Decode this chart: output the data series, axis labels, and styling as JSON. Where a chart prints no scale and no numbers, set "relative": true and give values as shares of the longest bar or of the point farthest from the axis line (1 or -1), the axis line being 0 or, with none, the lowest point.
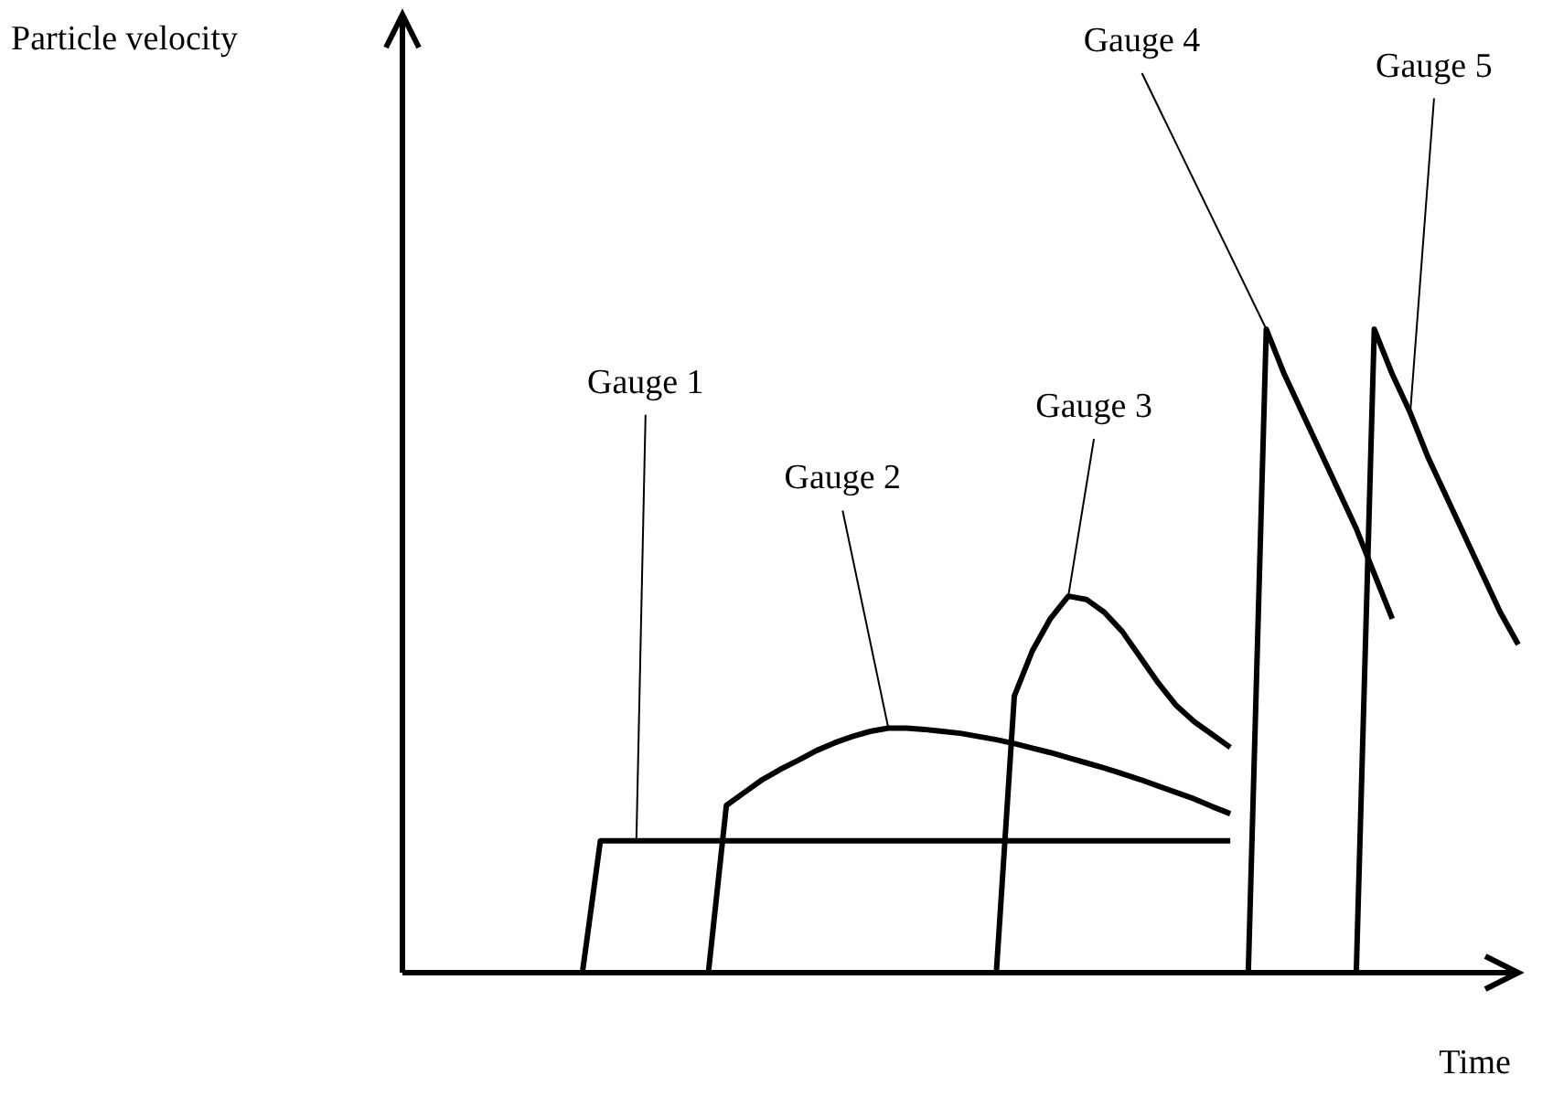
{
  "chart_data": {
    "type": "line",
    "relative": true,
    "xlabel": "Time",
    "categories": [
      null,
      null,
      null,
      null,
      null,
      null,
      null,
      null,
      null,
      null,
      null,
      null,
      null,
      null,
      null,
      null,
      null,
      null,
      null,
      null,
      null,
      null,
      null,
      null,
      null,
      null,
      null,
      null,
      null,
      null,
      null,
      null,
      null,
      null,
      null,
      null,
      null,
      null,
      null,
      null,
      null,
      null,
      null,
      null,
      null,
      null,
      null,
      null,
      null,
      null,
      null,
      null,
      null,
      null,
      null,
      null,
      null,
      null,
      null,
      null,
      null,
      null,
      null
    ],
    "series": [
      {
        "color": "#000000",
        "values": [
          null,
          null,
          null,
          null,
          null,
          null,
          null,
          null,
          null,
          null,
          0,
          0.205,
          0.205,
          0.205,
          0.205,
          0.205,
          0.205,
          0.205,
          0.205,
          0.205,
          0.205,
          0.205,
          0.205,
          0.205,
          0.205,
          0.205,
          0.205,
          0.205,
          0.205,
          0.205,
          0.205,
          0.205,
          0.205,
          0.205,
          0.205,
          0.205,
          0.205,
          0.205,
          0.205,
          0.205,
          0.205,
          0.205,
          0.205,
          0.205,
          0.205,
          0.205,
          0.205,
          null,
          null,
          null,
          null,
          null,
          null,
          null,
          null,
          null,
          null,
          null,
          null,
          null,
          null,
          null,
          null
        ]
      },
      {
        "color": "#000000",
        "values": [
          null,
          null,
          null,
          null,
          null,
          null,
          null,
          null,
          null,
          null,
          null,
          null,
          null,
          null,
          null,
          null,
          null,
          0,
          0.26,
          0.28,
          0.3,
          0.316,
          0.33,
          0.345,
          0.357,
          0.367,
          0.375,
          0.38,
          0.38,
          0.378,
          0.375,
          0.372,
          0.367,
          0.362,
          0.356,
          0.349,
          0.342,
          0.334,
          0.326,
          0.318,
          0.309,
          0.3,
          0.29,
          0.28,
          0.27,
          0.258,
          0.247,
          null,
          null,
          null,
          null,
          null,
          null,
          null,
          null,
          null,
          null,
          null,
          null,
          null,
          null,
          null,
          null
        ]
      },
      {
        "color": "#000000",
        "values": [
          null,
          null,
          null,
          null,
          null,
          null,
          null,
          null,
          null,
          null,
          null,
          null,
          null,
          null,
          null,
          null,
          null,
          null,
          null,
          null,
          null,
          null,
          null,
          null,
          null,
          null,
          null,
          null,
          null,
          null,
          null,
          null,
          null,
          0,
          0.43,
          0.5,
          0.55,
          0.585,
          0.58,
          0.56,
          0.53,
          0.49,
          0.45,
          0.415,
          0.39,
          0.37,
          0.35,
          null,
          null,
          null,
          null,
          null,
          null,
          null,
          null,
          null,
          null,
          null,
          null,
          null,
          null,
          null,
          null
        ]
      },
      {
        "color": "#000000",
        "values": [
          null,
          null,
          null,
          null,
          null,
          null,
          null,
          null,
          null,
          null,
          null,
          null,
          null,
          null,
          null,
          null,
          null,
          null,
          null,
          null,
          null,
          null,
          null,
          null,
          null,
          null,
          null,
          null,
          null,
          null,
          null,
          null,
          null,
          null,
          null,
          null,
          null,
          null,
          null,
          null,
          null,
          null,
          null,
          null,
          null,
          null,
          null,
          0,
          1,
          0.93,
          0.87,
          0.81,
          0.75,
          0.69,
          0.62,
          0.55,
          null,
          null,
          null,
          null,
          null,
          null,
          null
        ]
      },
      {
        "color": "#000000",
        "values": [
          null,
          null,
          null,
          null,
          null,
          null,
          null,
          null,
          null,
          null,
          null,
          null,
          null,
          null,
          null,
          null,
          null,
          null,
          null,
          null,
          null,
          null,
          null,
          null,
          null,
          null,
          null,
          null,
          null,
          null,
          null,
          null,
          null,
          null,
          null,
          null,
          null,
          null,
          null,
          null,
          null,
          null,
          null,
          null,
          null,
          null,
          null,
          null,
          null,
          null,
          null,
          null,
          null,
          0,
          1,
          0.93,
          0.87,
          0.8,
          0.74,
          0.68,
          0.62,
          0.56,
          0.51
        ]
      }
    ],
    "annotations": [
      "Particle velocity",
      "Gauge 1",
      "Gauge 2",
      "Gauge 3",
      "Gauge 4",
      "Gauge 5"
    ]
  }
}
